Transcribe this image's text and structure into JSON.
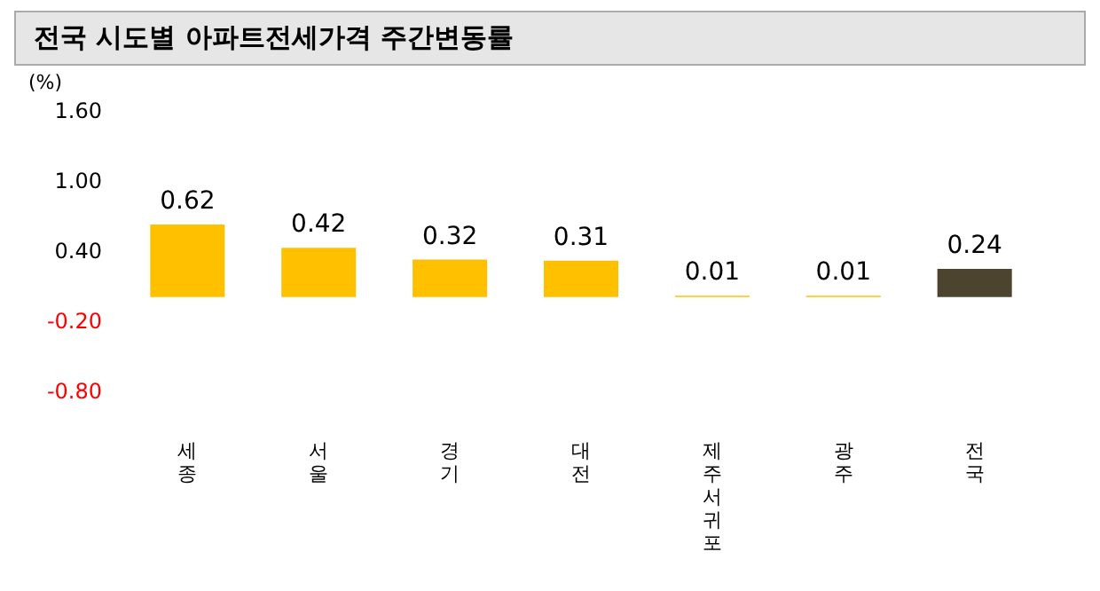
{
  "chart_data": {
    "type": "bar",
    "title": "전국 시도별 아파트전세가격 주간변동률",
    "ylabel": "(%)",
    "categories": [
      "세종",
      "서울",
      "경기",
      "대전",
      "제주서귀포",
      "광주",
      "전국"
    ],
    "values": [
      0.62,
      0.42,
      0.32,
      0.31,
      0.01,
      0.01,
      0.24
    ],
    "colors": [
      "#ffc000",
      "#ffc000",
      "#ffc000",
      "#ffc000",
      "#ffc000",
      "#ffc000",
      "#4d4430"
    ],
    "ylim": [
      -0.8,
      1.6
    ],
    "yticks": [
      {
        "value": 1.6,
        "label": "1.60"
      },
      {
        "value": 1.0,
        "label": "1.00"
      },
      {
        "value": 0.4,
        "label": "0.40"
      },
      {
        "value": -0.2,
        "label": "-0.20"
      },
      {
        "value": -0.8,
        "label": "-0.80"
      }
    ],
    "data_labels": true,
    "grid": false
  }
}
